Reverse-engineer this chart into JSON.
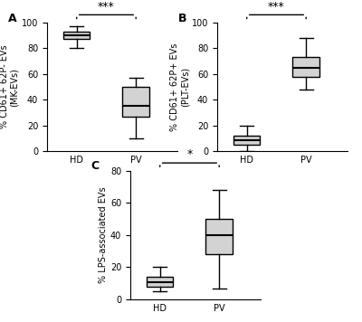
{
  "panels": [
    {
      "label": "A",
      "ylabel": "% CD61+ 62P- EVs\n(MK-EVs)",
      "ylim": [
        0,
        100
      ],
      "yticks": [
        0,
        20,
        40,
        60,
        80,
        100
      ],
      "groups": [
        "HD",
        "PV"
      ],
      "HD": {
        "whislo": 80,
        "q1": 87,
        "med": 90,
        "q3": 93,
        "whishi": 97
      },
      "PV": {
        "whislo": 10,
        "q1": 27,
        "med": 35,
        "q3": 50,
        "whishi": 57
      },
      "sig": "***"
    },
    {
      "label": "B",
      "ylabel": "% CD61+ 62P+ EVs\n(PLT-EVs)",
      "ylim": [
        0,
        100
      ],
      "yticks": [
        0,
        20,
        40,
        60,
        80,
        100
      ],
      "groups": [
        "HD",
        "PV"
      ],
      "HD": {
        "whislo": 0,
        "q1": 5,
        "med": 9,
        "q3": 12,
        "whishi": 20
      },
      "PV": {
        "whislo": 48,
        "q1": 58,
        "med": 65,
        "q3": 73,
        "whishi": 88
      },
      "sig": "***"
    },
    {
      "label": "C",
      "ylabel": "% LPS-associated EVs",
      "ylim": [
        0,
        80
      ],
      "yticks": [
        0,
        20,
        40,
        60,
        80
      ],
      "groups": [
        "HD",
        "PV"
      ],
      "HD": {
        "whislo": 5,
        "q1": 8,
        "med": 11,
        "q3": 14,
        "whishi": 20
      },
      "PV": {
        "whislo": 7,
        "q1": 28,
        "med": 40,
        "q3": 50,
        "whishi": 68
      },
      "sig": "*"
    }
  ],
  "box_color": "#d3d3d3",
  "median_color": "#000000",
  "whisker_color": "#000000",
  "sig_fontsize": 9,
  "tick_fontsize": 7,
  "ylabel_fontsize": 7,
  "panel_label_fontsize": 9,
  "background_color": "#ffffff"
}
